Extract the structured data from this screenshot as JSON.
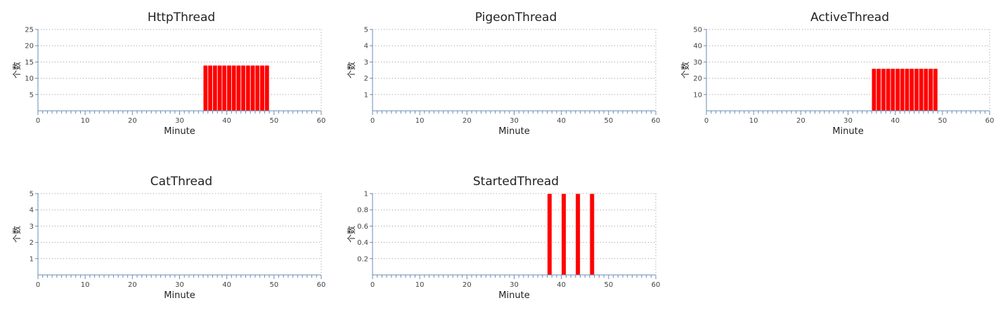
{
  "chart_data": [
    {
      "type": "bar",
      "title": "HttpThread",
      "xlabel": "Minute",
      "ylabel": "个数",
      "xlim": [
        0,
        60
      ],
      "ylim": [
        0,
        25
      ],
      "xticks": [
        0,
        10,
        20,
        30,
        40,
        50,
        60
      ],
      "yticks": [
        5,
        10,
        15,
        20,
        25
      ],
      "grid": true,
      "color": "#ff0000",
      "x": [
        35,
        36,
        37,
        38,
        39,
        40,
        41,
        42,
        43,
        44,
        45,
        46,
        47,
        48
      ],
      "values": [
        14,
        14,
        14,
        14,
        14,
        14,
        14,
        14,
        14,
        14,
        14,
        14,
        14,
        14
      ]
    },
    {
      "type": "bar",
      "title": "PigeonThread",
      "xlabel": "Minute",
      "ylabel": "个数",
      "xlim": [
        0,
        60
      ],
      "ylim": [
        0,
        5
      ],
      "xticks": [
        0,
        10,
        20,
        30,
        40,
        50,
        60
      ],
      "yticks": [
        1,
        2,
        3,
        4,
        5
      ],
      "grid": true,
      "color": "#ff0000",
      "x": [],
      "values": []
    },
    {
      "type": "bar",
      "title": "ActiveThread",
      "xlabel": "Minute",
      "ylabel": "个数",
      "xlim": [
        0,
        60
      ],
      "ylim": [
        0,
        50
      ],
      "xticks": [
        0,
        10,
        20,
        30,
        40,
        50,
        60
      ],
      "yticks": [
        10,
        20,
        30,
        40,
        50
      ],
      "grid": true,
      "color": "#ff0000",
      "x": [
        35,
        36,
        37,
        38,
        39,
        40,
        41,
        42,
        43,
        44,
        45,
        46,
        47,
        48
      ],
      "values": [
        26,
        26,
        26,
        26,
        26,
        26,
        26,
        26,
        26,
        26,
        26,
        26,
        26,
        26
      ]
    },
    {
      "type": "bar",
      "title": "CatThread",
      "xlabel": "Minute",
      "ylabel": "个数",
      "xlim": [
        0,
        60
      ],
      "ylim": [
        0,
        5
      ],
      "xticks": [
        0,
        10,
        20,
        30,
        40,
        50,
        60
      ],
      "yticks": [
        1,
        2,
        3,
        4,
        5
      ],
      "grid": true,
      "color": "#ff0000",
      "x": [],
      "values": []
    },
    {
      "type": "bar",
      "title": "StartedThread",
      "xlabel": "Minute",
      "ylabel": "个数",
      "xlim": [
        0,
        60
      ],
      "ylim": [
        0,
        1
      ],
      "xticks": [
        0,
        10,
        20,
        30,
        40,
        50,
        60
      ],
      "yticks": [
        0.2,
        0.4,
        0.6,
        0.8,
        1
      ],
      "grid": true,
      "color": "#ff0000",
      "x": [
        37,
        40,
        43,
        46
      ],
      "values": [
        1,
        1,
        1,
        1
      ]
    }
  ]
}
